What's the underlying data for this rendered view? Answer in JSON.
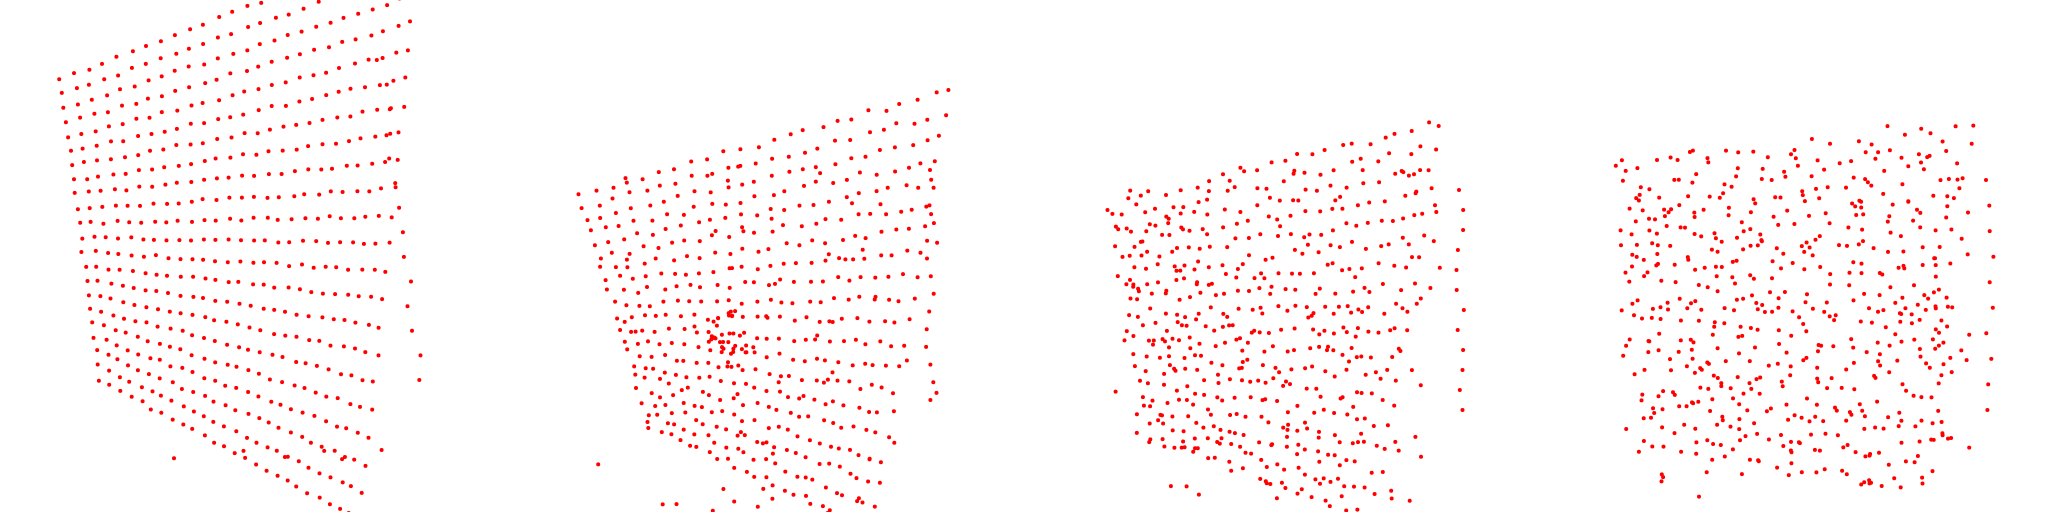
{
  "figure": {
    "point_color": "#ff0000",
    "background": "#ffffff",
    "panels": [
      {
        "id": "panel-1",
        "pattern": "structured-grid"
      },
      {
        "id": "panel-2",
        "pattern": "grid-with-cluster"
      },
      {
        "id": "panel-3",
        "pattern": "partially-jittered-grid"
      },
      {
        "id": "panel-4",
        "pattern": "mostly-random-cloud"
      }
    ]
  }
}
